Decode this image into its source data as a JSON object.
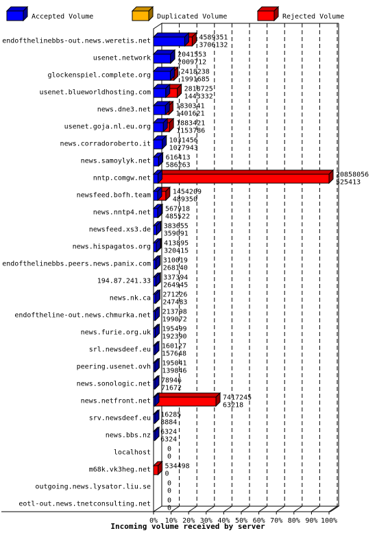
{
  "chart_data": {
    "type": "bar",
    "orientation": "horizontal",
    "style": "3d-overlapping",
    "title": "",
    "xlabel": "Incoming volume received by server",
    "ylabel": "",
    "xlim": [
      0,
      100
    ],
    "x_ticks": [
      "0%",
      "10%",
      "20%",
      "30%",
      "40%",
      "50%",
      "60%",
      "70%",
      "80%",
      "90%",
      "100%"
    ],
    "legend_position": "top",
    "grid": "dashed-vertical",
    "legend": [
      {
        "name": "Accepted Volume",
        "color": "#0000ff"
      },
      {
        "name": "Duplicated Volume",
        "color": "#ffb300"
      },
      {
        "name": "Rejected Volume",
        "color": "#ff0000"
      }
    ],
    "rows": [
      {
        "server": "endofthelinebbs-out.news.weretis.net",
        "total": 4589351,
        "accepted": 3706132
      },
      {
        "server": "usenet.network",
        "total": 2041553,
        "accepted": 2009712
      },
      {
        "server": "glockenspiel.complete.org",
        "total": 2418238,
        "accepted": 1991685
      },
      {
        "server": "usenet.blueworldhosting.com",
        "total": 2818725,
        "accepted": 1443332
      },
      {
        "server": "news.dne3.net",
        "total": 1830341,
        "accepted": 1401621
      },
      {
        "server": "usenet.goja.nl.eu.org",
        "total": 1883421,
        "accepted": 1153786
      },
      {
        "server": "news.corradoroberto.it",
        "total": 1031456,
        "accepted": 1027943
      },
      {
        "server": "news.samoylyk.net",
        "total": 616413,
        "accepted": 586263
      },
      {
        "server": "nntp.comgw.net",
        "total": 20858056,
        "accepted": 525413
      },
      {
        "server": "newsfeed.bofh.team",
        "total": 1454209,
        "accepted": 489350
      },
      {
        "server": "news.nntp4.net",
        "total": 567918,
        "accepted": 485522
      },
      {
        "server": "newsfeed.xs3.de",
        "total": 383655,
        "accepted": 359091
      },
      {
        "server": "news.hispagatos.org",
        "total": 413895,
        "accepted": 320415
      },
      {
        "server": "endofthelinebbs.peers.news.panix.com",
        "total": 310019,
        "accepted": 268140
      },
      {
        "server": "194.87.241.33",
        "total": 337394,
        "accepted": 264945
      },
      {
        "server": "news.nk.ca",
        "total": 271226,
        "accepted": 247483
      },
      {
        "server": "endoftheline-out.news.chmurka.net",
        "total": 213798,
        "accepted": 199072
      },
      {
        "server": "news.furie.org.uk",
        "total": 195499,
        "accepted": 192390
      },
      {
        "server": "srl.newsdeef.eu",
        "total": 160127,
        "accepted": 157648
      },
      {
        "server": "peering.usenet.ovh",
        "total": 195041,
        "accepted": 139846
      },
      {
        "server": "news.sonologic.net",
        "total": 78946,
        "accepted": 71672
      },
      {
        "server": "news.netfront.net",
        "total": 7417245,
        "accepted": 63218
      },
      {
        "server": "srv.newsdeef.eu",
        "total": 16285,
        "accepted": 8884
      },
      {
        "server": "news.bbs.nz",
        "total": 6324,
        "accepted": 6324
      },
      {
        "server": "localhost",
        "total": 0,
        "accepted": 0
      },
      {
        "server": "m68k.vk3heg.net",
        "total": 534498,
        "accepted": 0
      },
      {
        "server": "outgoing.news.lysator.liu.se",
        "total": 0,
        "accepted": 0
      },
      {
        "server": "eotl-out.news.tnetconsulting.net",
        "total": 0,
        "accepted": 0
      }
    ]
  }
}
